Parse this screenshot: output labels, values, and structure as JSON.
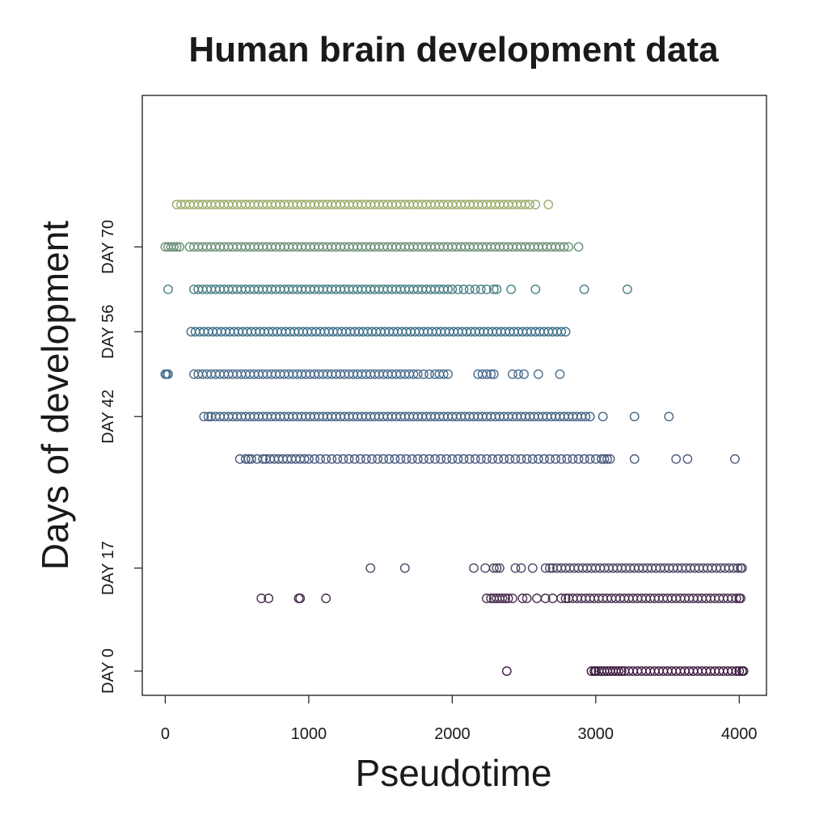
{
  "chart_data": {
    "type": "scatter",
    "title": "Human brain development data",
    "xlabel": "Pseudotime",
    "ylabel": "Days of development",
    "xlim": [
      -160,
      4190
    ],
    "ylim": [
      -4,
      95
    ],
    "xticks": [
      0,
      1000,
      2000,
      3000,
      4000
    ],
    "xtick_labels": [
      "0",
      "1000",
      "2000",
      "3000",
      "4000"
    ],
    "yticks": [
      0,
      17,
      42,
      56,
      70
    ],
    "ytick_labels": [
      "DAY 0",
      "DAY 17",
      "DAY 42",
      "DAY 56",
      "DAY 70"
    ],
    "grid": false,
    "marker": "open-circle",
    "series": [
      {
        "day": 0,
        "y": 0,
        "color": "#3d1a40",
        "points": [
          2380,
          2970,
          2990,
          3000,
          3020,
          3040,
          3060,
          3080,
          3100,
          3120,
          3140,
          3160,
          3180,
          3200,
          3230,
          3260,
          3290,
          3320,
          3350,
          3380,
          3410,
          3440,
          3470,
          3500,
          3530,
          3560,
          3590,
          3620,
          3650,
          3680,
          3710,
          3740,
          3770,
          3800,
          3830,
          3860,
          3890,
          3920,
          3950,
          3980,
          4000,
          4020,
          4030
        ]
      },
      {
        "day": 12,
        "y": 12,
        "color": "#4a3050",
        "points": [
          670,
          720,
          930,
          940,
          1120,
          2240,
          2270,
          2290,
          2310,
          2330,
          2350,
          2370,
          2390,
          2420,
          2490,
          2520,
          2590,
          2650,
          2700,
          2760,
          2790,
          2810,
          2840,
          2870,
          2900,
          2930,
          2960,
          2990,
          3020,
          3050,
          3080,
          3110,
          3140,
          3170,
          3200,
          3230,
          3260,
          3290,
          3320,
          3350,
          3380,
          3410,
          3440,
          3470,
          3500,
          3530,
          3560,
          3590,
          3620,
          3650,
          3680,
          3710,
          3740,
          3770,
          3800,
          3830,
          3860,
          3890,
          3920,
          3950,
          3980,
          4000,
          4010
        ]
      },
      {
        "day": 17,
        "y": 17,
        "color": "#4a4a68",
        "points": [
          1430,
          1670,
          2150,
          2230,
          2290,
          2310,
          2330,
          2440,
          2480,
          2560,
          2650,
          2680,
          2700,
          2730,
          2760,
          2790,
          2820,
          2850,
          2880,
          2910,
          2940,
          2970,
          3000,
          3030,
          3060,
          3090,
          3120,
          3150,
          3180,
          3210,
          3240,
          3270,
          3300,
          3330,
          3360,
          3390,
          3420,
          3450,
          3480,
          3510,
          3540,
          3570,
          3600,
          3630,
          3660,
          3690,
          3720,
          3750,
          3780,
          3810,
          3840,
          3870,
          3900,
          3930,
          3960,
          3990,
          4010,
          4020
        ]
      },
      {
        "day": 35,
        "y": 35,
        "color": "#4a5a80",
        "points": [
          520,
          560,
          580,
          600,
          640,
          680,
          700,
          730,
          760,
          790,
          820,
          850,
          880,
          910,
          940,
          970,
          1000,
          1040,
          1080,
          1120,
          1160,
          1200,
          1240,
          1280,
          1320,
          1360,
          1400,
          1440,
          1480,
          1520,
          1560,
          1600,
          1640,
          1680,
          1720,
          1760,
          1800,
          1840,
          1880,
          1920,
          1960,
          2000,
          2040,
          2080,
          2120,
          2160,
          2200,
          2240,
          2280,
          2320,
          2360,
          2400,
          2440,
          2480,
          2520,
          2560,
          2600,
          2640,
          2680,
          2720,
          2760,
          2800,
          2840,
          2880,
          2920,
          2960,
          3000,
          3040,
          3060,
          3080,
          3100,
          3270,
          3560,
          3640,
          3970
        ]
      },
      {
        "day": 42,
        "y": 42,
        "color": "#456585",
        "points": [
          270,
          300,
          320,
          350,
          380,
          410,
          440,
          470,
          500,
          530,
          560,
          590,
          620,
          650,
          680,
          710,
          740,
          770,
          800,
          830,
          860,
          890,
          920,
          950,
          980,
          1010,
          1040,
          1070,
          1100,
          1130,
          1160,
          1190,
          1220,
          1250,
          1280,
          1310,
          1340,
          1370,
          1400,
          1430,
          1460,
          1490,
          1520,
          1550,
          1580,
          1610,
          1640,
          1670,
          1700,
          1730,
          1760,
          1790,
          1820,
          1850,
          1880,
          1910,
          1940,
          1970,
          2000,
          2030,
          2060,
          2090,
          2120,
          2150,
          2180,
          2210,
          2240,
          2270,
          2300,
          2330,
          2360,
          2390,
          2420,
          2450,
          2480,
          2510,
          2540,
          2570,
          2600,
          2630,
          2660,
          2690,
          2720,
          2750,
          2780,
          2810,
          2840,
          2870,
          2900,
          2930,
          2960,
          3050,
          3270,
          3510
        ]
      },
      {
        "day": 49,
        "y": 49,
        "color": "#4a6e8e",
        "points": [
          0,
          10,
          20,
          200,
          230,
          260,
          290,
          320,
          350,
          380,
          410,
          440,
          470,
          500,
          530,
          560,
          590,
          620,
          650,
          680,
          710,
          740,
          770,
          800,
          830,
          860,
          890,
          920,
          950,
          980,
          1010,
          1040,
          1070,
          1100,
          1130,
          1160,
          1190,
          1220,
          1250,
          1280,
          1310,
          1340,
          1370,
          1400,
          1430,
          1460,
          1490,
          1520,
          1550,
          1580,
          1610,
          1640,
          1670,
          1700,
          1730,
          1760,
          1800,
          1840,
          1880,
          1910,
          1940,
          1970,
          2180,
          2210,
          2240,
          2270,
          2290,
          2420,
          2460,
          2500,
          2600,
          2750
        ]
      },
      {
        "day": 56,
        "y": 56,
        "color": "#3f708a",
        "points": [
          180,
          210,
          240,
          270,
          300,
          330,
          360,
          390,
          420,
          450,
          480,
          510,
          540,
          570,
          600,
          630,
          660,
          690,
          720,
          750,
          780,
          810,
          840,
          870,
          900,
          930,
          960,
          990,
          1020,
          1050,
          1080,
          1110,
          1140,
          1170,
          1200,
          1230,
          1260,
          1290,
          1320,
          1350,
          1380,
          1410,
          1440,
          1470,
          1500,
          1530,
          1560,
          1590,
          1620,
          1650,
          1680,
          1710,
          1740,
          1770,
          1800,
          1830,
          1860,
          1890,
          1920,
          1950,
          1980,
          2010,
          2040,
          2070,
          2100,
          2130,
          2160,
          2190,
          2220,
          2250,
          2280,
          2310,
          2340,
          2370,
          2400,
          2430,
          2460,
          2490,
          2520,
          2550,
          2580,
          2610,
          2640,
          2670,
          2700,
          2730,
          2760,
          2790
        ]
      },
      {
        "day": 63,
        "y": 63,
        "color": "#4a8085",
        "points": [
          20,
          200,
          230,
          260,
          290,
          320,
          350,
          380,
          410,
          440,
          470,
          500,
          530,
          560,
          590,
          620,
          650,
          680,
          710,
          740,
          770,
          800,
          830,
          860,
          890,
          920,
          950,
          980,
          1010,
          1040,
          1070,
          1100,
          1130,
          1160,
          1190,
          1220,
          1250,
          1280,
          1310,
          1340,
          1370,
          1400,
          1430,
          1460,
          1490,
          1520,
          1550,
          1580,
          1610,
          1640,
          1670,
          1700,
          1730,
          1760,
          1790,
          1820,
          1850,
          1880,
          1910,
          1940,
          1970,
          2000,
          2040,
          2080,
          2120,
          2160,
          2200,
          2240,
          2290,
          2310,
          2410,
          2580,
          2920,
          3220
        ]
      },
      {
        "day": 70,
        "y": 70,
        "color": "#6a9075",
        "points": [
          0,
          20,
          40,
          60,
          80,
          100,
          170,
          200,
          230,
          260,
          290,
          320,
          350,
          380,
          410,
          440,
          470,
          500,
          530,
          560,
          590,
          620,
          650,
          680,
          710,
          740,
          770,
          800,
          830,
          860,
          890,
          920,
          950,
          980,
          1010,
          1040,
          1070,
          1100,
          1130,
          1160,
          1190,
          1220,
          1250,
          1280,
          1310,
          1340,
          1370,
          1400,
          1430,
          1460,
          1490,
          1520,
          1550,
          1580,
          1610,
          1640,
          1670,
          1700,
          1730,
          1760,
          1790,
          1820,
          1850,
          1880,
          1910,
          1940,
          1970,
          2000,
          2030,
          2060,
          2090,
          2120,
          2150,
          2180,
          2210,
          2240,
          2270,
          2300,
          2330,
          2360,
          2390,
          2420,
          2450,
          2480,
          2510,
          2540,
          2570,
          2600,
          2630,
          2660,
          2690,
          2720,
          2750,
          2780,
          2810,
          2880
        ]
      },
      {
        "day": 77,
        "y": 77,
        "color": "#98ad68",
        "points": [
          80,
          110,
          140,
          170,
          200,
          230,
          260,
          290,
          320,
          350,
          380,
          410,
          440,
          470,
          500,
          530,
          560,
          590,
          620,
          650,
          680,
          710,
          740,
          770,
          800,
          830,
          860,
          890,
          920,
          950,
          980,
          1010,
          1040,
          1070,
          1100,
          1130,
          1160,
          1190,
          1220,
          1250,
          1280,
          1310,
          1340,
          1370,
          1400,
          1430,
          1460,
          1490,
          1520,
          1550,
          1580,
          1610,
          1640,
          1670,
          1700,
          1730,
          1760,
          1790,
          1820,
          1850,
          1880,
          1910,
          1940,
          1970,
          2000,
          2030,
          2060,
          2090,
          2120,
          2150,
          2180,
          2210,
          2240,
          2270,
          2300,
          2330,
          2360,
          2390,
          2420,
          2450,
          2480,
          2510,
          2540,
          2580,
          2670
        ]
      }
    ]
  }
}
